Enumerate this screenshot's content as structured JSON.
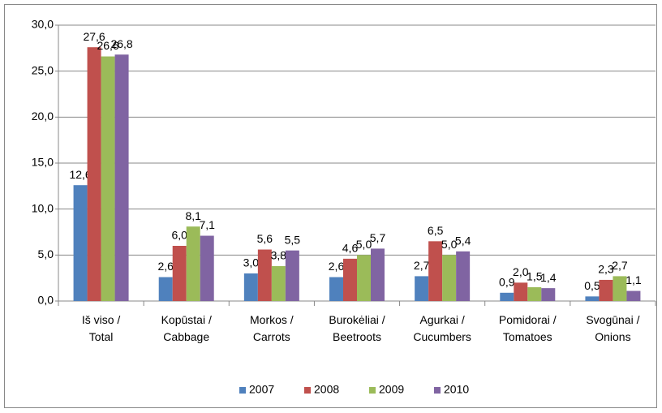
{
  "chart_data": {
    "type": "bar",
    "categories": [
      "Iš viso / Total",
      "Kopūstai / Cabbage",
      "Morkos / Carrots",
      "Burokėliai / Beetroots",
      "Agurkai / Cucumbers",
      "Pomidorai / Tomatoes",
      "Svogūnai / Onions"
    ],
    "series": [
      {
        "name": "2007",
        "color": "#4f81bd",
        "values": [
          12.6,
          2.6,
          3.0,
          2.6,
          2.7,
          0.9,
          0.5
        ],
        "value_labels": [
          "12,6",
          "2,6",
          "3,0",
          "2,6",
          "2,7",
          "0,9",
          "0,5"
        ]
      },
      {
        "name": "2008",
        "color": "#c0504d",
        "values": [
          27.6,
          6.0,
          5.6,
          4.6,
          6.5,
          2.0,
          2.3
        ],
        "value_labels": [
          "27,6",
          "6,0",
          "5,6",
          "4,6",
          "6,5",
          "2,0",
          "2,3"
        ]
      },
      {
        "name": "2009",
        "color": "#9bbb59",
        "values": [
          26.6,
          8.1,
          3.8,
          5.0,
          5.0,
          1.5,
          2.7
        ],
        "value_labels": [
          "26,6",
          "8,1",
          "3,8",
          "5,0",
          "5,0",
          "1,5",
          "2,7"
        ]
      },
      {
        "name": "2010",
        "color": "#8064a2",
        "values": [
          26.8,
          7.1,
          5.5,
          5.7,
          5.4,
          1.4,
          1.1
        ],
        "value_labels": [
          "26,8",
          "7,1",
          "5,5",
          "5,7",
          "5,4",
          "1,4",
          "1,1"
        ]
      }
    ],
    "ylim": [
      0,
      30
    ],
    "yticks": [
      {
        "value": 0,
        "label": "0,0"
      },
      {
        "value": 5,
        "label": "5,0"
      },
      {
        "value": 10,
        "label": "10,0"
      },
      {
        "value": 15,
        "label": "15,0"
      },
      {
        "value": 20,
        "label": "20,0"
      },
      {
        "value": 25,
        "label": "25,0"
      },
      {
        "value": 30,
        "label": "30,0"
      }
    ],
    "grid": true,
    "legend": "bottom"
  }
}
